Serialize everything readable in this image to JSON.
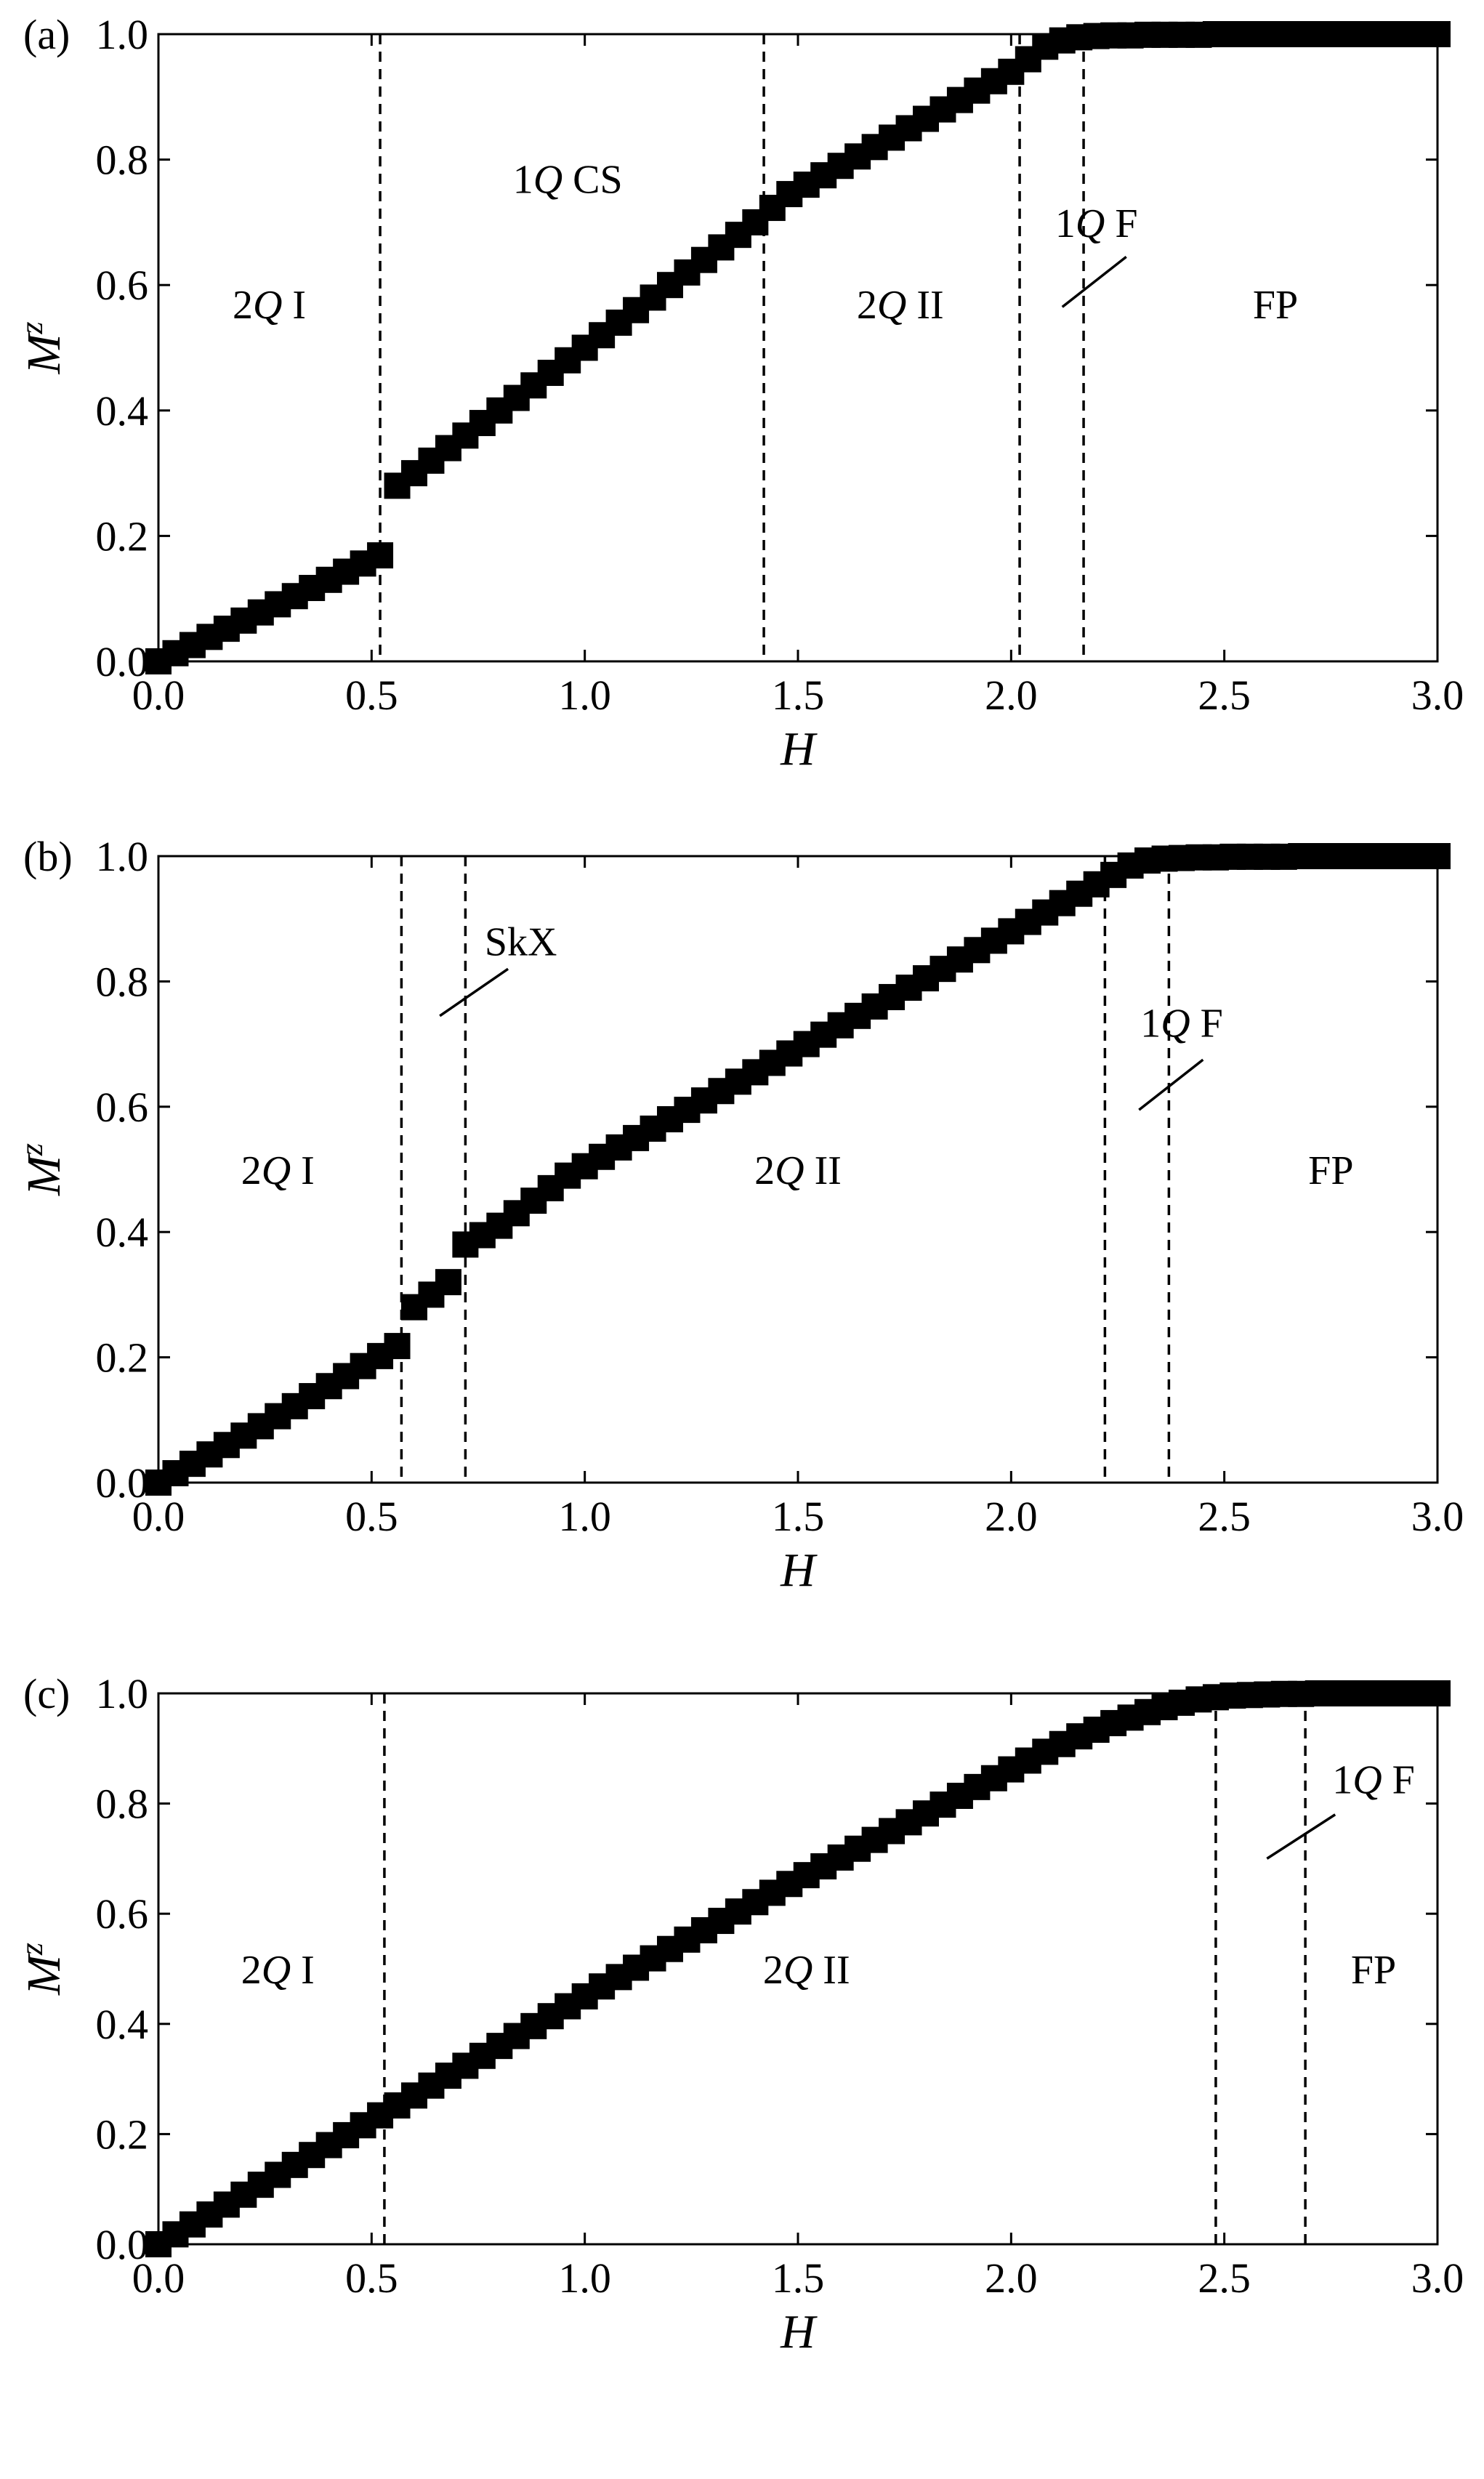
{
  "chart_data": [
    {
      "type": "scatter",
      "panel_label": "(a)",
      "xlabel": "H",
      "ylabel": "M",
      "ylabel_sup": "z",
      "xlim": [
        0.0,
        3.0
      ],
      "ylim": [
        0.0,
        1.0
      ],
      "xticks": [
        "0.0",
        "0.5",
        "1.0",
        "1.5",
        "2.0",
        "2.5",
        "3.0"
      ],
      "yticks": [
        "0.0",
        "0.2",
        "0.4",
        "0.6",
        "0.8",
        "1.0"
      ],
      "grid": false,
      "marker": "square",
      "boundaries": [
        0.52,
        1.42,
        2.02,
        2.17
      ],
      "phases": [
        {
          "pre": "2",
          "italic": "Q",
          "post": " I",
          "x": 0.26,
          "y": 0.57
        },
        {
          "pre": "1",
          "italic": "Q",
          "post": " CS",
          "x": 0.96,
          "y": 0.77
        },
        {
          "pre": "2",
          "italic": "Q",
          "post": " II",
          "x": 1.74,
          "y": 0.57
        },
        {
          "pre": "1",
          "italic": "Q",
          "post": " F",
          "x": 2.2,
          "y": 0.7,
          "pointer": [
            [
              2.12,
              0.565
            ],
            [
              2.27,
              0.645
            ]
          ]
        },
        {
          "pre": "",
          "italic": "",
          "post": "FP",
          "x": 2.62,
          "y": 0.57
        }
      ],
      "x": [
        0.0,
        0.04,
        0.08,
        0.12,
        0.16,
        0.2,
        0.24,
        0.28,
        0.32,
        0.36,
        0.4,
        0.44,
        0.48,
        0.52,
        0.56,
        0.6,
        0.64,
        0.68,
        0.72,
        0.76,
        0.8,
        0.84,
        0.88,
        0.92,
        0.96,
        1.0,
        1.04,
        1.08,
        1.12,
        1.16,
        1.2,
        1.24,
        1.28,
        1.32,
        1.36,
        1.4,
        1.44,
        1.48,
        1.52,
        1.56,
        1.6,
        1.64,
        1.68,
        1.72,
        1.76,
        1.8,
        1.84,
        1.88,
        1.92,
        1.96,
        2.0,
        2.04,
        2.08,
        2.12,
        2.16,
        2.2,
        2.24,
        2.28,
        2.32,
        2.36,
        2.4,
        2.44,
        2.48,
        2.52,
        2.56,
        2.6,
        2.64,
        2.68,
        2.72,
        2.76,
        2.8,
        2.84,
        2.88,
        2.92,
        2.96,
        3.0
      ],
      "y": [
        0.0,
        0.013,
        0.026,
        0.039,
        0.052,
        0.065,
        0.078,
        0.091,
        0.104,
        0.117,
        0.13,
        0.143,
        0.156,
        0.169,
        0.28,
        0.3,
        0.32,
        0.34,
        0.36,
        0.38,
        0.4,
        0.42,
        0.44,
        0.46,
        0.48,
        0.5,
        0.52,
        0.54,
        0.56,
        0.58,
        0.6,
        0.62,
        0.64,
        0.66,
        0.68,
        0.7,
        0.723,
        0.745,
        0.76,
        0.775,
        0.79,
        0.805,
        0.82,
        0.835,
        0.85,
        0.865,
        0.88,
        0.895,
        0.91,
        0.925,
        0.94,
        0.96,
        0.98,
        0.99,
        0.995,
        0.997,
        0.998,
        0.998,
        0.999,
        0.999,
        0.999,
        0.999,
        1.0,
        1.0,
        1.0,
        1.0,
        1.0,
        1.0,
        1.0,
        1.0,
        1.0,
        1.0,
        1.0,
        1.0,
        1.0,
        1.0
      ]
    },
    {
      "type": "scatter",
      "panel_label": "(b)",
      "xlabel": "H",
      "ylabel": "M",
      "ylabel_sup": "z",
      "xlim": [
        0.0,
        3.0
      ],
      "ylim": [
        0.0,
        1.0
      ],
      "xticks": [
        "0.0",
        "0.5",
        "1.0",
        "1.5",
        "2.0",
        "2.5",
        "3.0"
      ],
      "yticks": [
        "0.0",
        "0.2",
        "0.4",
        "0.6",
        "0.8",
        "1.0"
      ],
      "grid": false,
      "marker": "square",
      "boundaries": [
        0.57,
        0.72,
        2.22,
        2.37
      ],
      "phases": [
        {
          "pre": "2",
          "italic": "Q",
          "post": " I",
          "x": 0.28,
          "y": 0.5
        },
        {
          "pre": "",
          "italic": "",
          "post": "SkX",
          "x": 0.85,
          "y": 0.865,
          "pointer": [
            [
              0.66,
              0.745
            ],
            [
              0.82,
              0.82
            ]
          ]
        },
        {
          "pre": "2",
          "italic": "Q",
          "post": " II",
          "x": 1.5,
          "y": 0.5
        },
        {
          "pre": "1",
          "italic": "Q",
          "post": " F",
          "x": 2.4,
          "y": 0.735,
          "pointer": [
            [
              2.3,
              0.595
            ],
            [
              2.45,
              0.675
            ]
          ]
        },
        {
          "pre": "",
          "italic": "",
          "post": "FP",
          "x": 2.75,
          "y": 0.5
        }
      ],
      "x": [
        0.0,
        0.04,
        0.08,
        0.12,
        0.16,
        0.2,
        0.24,
        0.28,
        0.32,
        0.36,
        0.4,
        0.44,
        0.48,
        0.52,
        0.56,
        0.6,
        0.64,
        0.68,
        0.72,
        0.76,
        0.8,
        0.84,
        0.88,
        0.92,
        0.96,
        1.0,
        1.04,
        1.08,
        1.12,
        1.16,
        1.2,
        1.24,
        1.28,
        1.32,
        1.36,
        1.4,
        1.44,
        1.48,
        1.52,
        1.56,
        1.6,
        1.64,
        1.68,
        1.72,
        1.76,
        1.8,
        1.84,
        1.88,
        1.92,
        1.96,
        2.0,
        2.04,
        2.08,
        2.12,
        2.16,
        2.2,
        2.24,
        2.28,
        2.32,
        2.36,
        2.4,
        2.44,
        2.48,
        2.52,
        2.56,
        2.6,
        2.64,
        2.68,
        2.72,
        2.76,
        2.8,
        2.84,
        2.88,
        2.92,
        2.96,
        3.0
      ],
      "y": [
        0.0,
        0.015,
        0.03,
        0.045,
        0.06,
        0.075,
        0.09,
        0.106,
        0.122,
        0.138,
        0.154,
        0.17,
        0.186,
        0.202,
        0.218,
        0.28,
        0.3,
        0.32,
        0.38,
        0.395,
        0.41,
        0.43,
        0.45,
        0.47,
        0.49,
        0.505,
        0.52,
        0.535,
        0.55,
        0.565,
        0.58,
        0.595,
        0.61,
        0.625,
        0.64,
        0.655,
        0.67,
        0.685,
        0.7,
        0.715,
        0.73,
        0.745,
        0.76,
        0.775,
        0.79,
        0.805,
        0.82,
        0.835,
        0.85,
        0.865,
        0.88,
        0.895,
        0.91,
        0.925,
        0.94,
        0.955,
        0.97,
        0.985,
        0.993,
        0.996,
        0.997,
        0.998,
        0.998,
        0.999,
        0.999,
        0.999,
        0.999,
        1.0,
        1.0,
        1.0,
        1.0,
        1.0,
        1.0,
        1.0,
        1.0,
        1.0
      ]
    },
    {
      "type": "scatter",
      "panel_label": "(c)",
      "xlabel": "H",
      "ylabel": "M",
      "ylabel_sup": "z",
      "xlim": [
        0.0,
        3.0
      ],
      "ylim": [
        0.0,
        1.0
      ],
      "xticks": [
        "0.0",
        "0.5",
        "1.0",
        "1.5",
        "2.0",
        "2.5",
        "3.0"
      ],
      "yticks": [
        "0.0",
        "0.2",
        "0.4",
        "0.6",
        "0.8",
        "1.0"
      ],
      "grid": false,
      "marker": "square",
      "boundaries": [
        0.53,
        2.48,
        2.69
      ],
      "phases": [
        {
          "pre": "2",
          "italic": "Q",
          "post": " I",
          "x": 0.28,
          "y": 0.5
        },
        {
          "pre": "2",
          "italic": "Q",
          "post": " II",
          "x": 1.52,
          "y": 0.5
        },
        {
          "pre": "1",
          "italic": "Q",
          "post": " F",
          "x": 2.85,
          "y": 0.845,
          "pointer": [
            [
              2.6,
              0.7
            ],
            [
              2.76,
              0.78
            ]
          ]
        },
        {
          "pre": "",
          "italic": "",
          "post": "FP",
          "x": 2.85,
          "y": 0.5
        }
      ],
      "x": [
        0.0,
        0.04,
        0.08,
        0.12,
        0.16,
        0.2,
        0.24,
        0.28,
        0.32,
        0.36,
        0.4,
        0.44,
        0.48,
        0.52,
        0.56,
        0.6,
        0.64,
        0.68,
        0.72,
        0.76,
        0.8,
        0.84,
        0.88,
        0.92,
        0.96,
        1.0,
        1.04,
        1.08,
        1.12,
        1.16,
        1.2,
        1.24,
        1.28,
        1.32,
        1.36,
        1.4,
        1.44,
        1.48,
        1.52,
        1.56,
        1.6,
        1.64,
        1.68,
        1.72,
        1.76,
        1.8,
        1.84,
        1.88,
        1.92,
        1.96,
        2.0,
        2.04,
        2.08,
        2.12,
        2.16,
        2.2,
        2.24,
        2.28,
        2.32,
        2.36,
        2.4,
        2.44,
        2.48,
        2.52,
        2.56,
        2.6,
        2.64,
        2.68,
        2.72,
        2.76,
        2.8,
        2.84,
        2.88,
        2.92,
        2.96,
        3.0
      ],
      "y": [
        0.0,
        0.018,
        0.036,
        0.054,
        0.072,
        0.09,
        0.108,
        0.126,
        0.144,
        0.162,
        0.18,
        0.198,
        0.216,
        0.234,
        0.252,
        0.27,
        0.288,
        0.306,
        0.324,
        0.342,
        0.36,
        0.378,
        0.396,
        0.414,
        0.432,
        0.45,
        0.468,
        0.485,
        0.502,
        0.519,
        0.536,
        0.553,
        0.57,
        0.587,
        0.604,
        0.621,
        0.638,
        0.654,
        0.67,
        0.686,
        0.702,
        0.718,
        0.734,
        0.75,
        0.766,
        0.782,
        0.798,
        0.814,
        0.83,
        0.846,
        0.862,
        0.878,
        0.894,
        0.908,
        0.922,
        0.934,
        0.946,
        0.956,
        0.966,
        0.975,
        0.983,
        0.989,
        0.993,
        0.996,
        0.997,
        0.998,
        0.999,
        0.999,
        1.0,
        1.0,
        1.0,
        1.0,
        1.0,
        1.0,
        1.0,
        1.0
      ]
    }
  ]
}
